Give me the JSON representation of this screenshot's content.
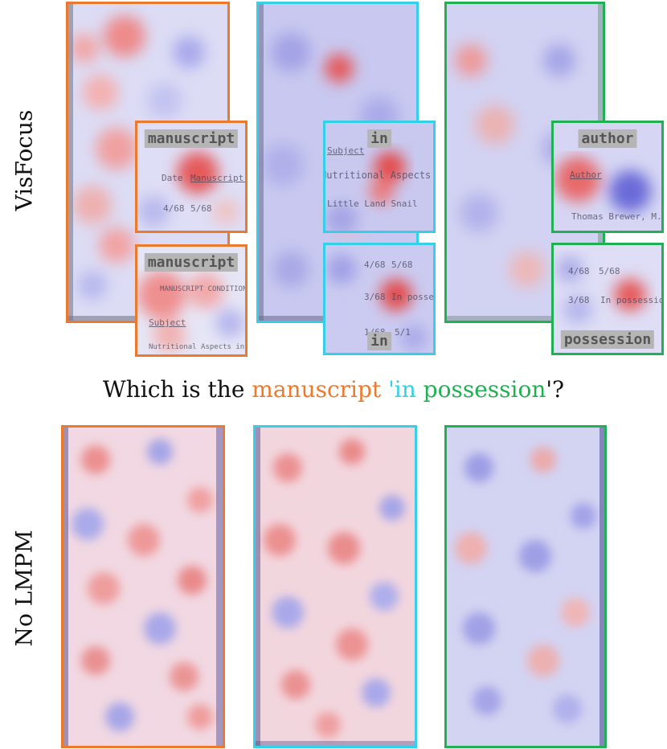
{
  "row_labels": {
    "top": "VisFocus",
    "bottom": "No LMPM"
  },
  "question": {
    "prefix": "Which is the ",
    "word_manuscript": "manuscript",
    "word_in": " 'in",
    "word_possession": " possession",
    "suffix": "'?"
  },
  "colors": {
    "orange": "#ec7a2e",
    "cyan": "#33d0e8",
    "green": "#21b054"
  },
  "insets": {
    "orange_top": {
      "tag": "manuscript",
      "words": [
        "Date",
        "Manuscript Due",
        "4/68",
        "5/68"
      ]
    },
    "orange_bottom": {
      "tag": "manuscript",
      "words": [
        "MANUSCRIPT CONDITIONS",
        "Subject",
        "Nutritional Aspects in Delmapaia"
      ]
    },
    "cyan_top": {
      "tag": "in",
      "words": [
        "Subject",
        "Nutritional Aspects in Delmapaia",
        "Little Land Snail"
      ]
    },
    "cyan_bottom": {
      "tag": "in",
      "words": [
        "4/68",
        "5/68",
        "3/68",
        "In possession",
        "1/68",
        "5/1"
      ]
    },
    "green_top": {
      "tag": "author",
      "words": [
        "Author",
        "Thomas Brewer, M.D."
      ]
    },
    "green_bottom": {
      "tag": "possession",
      "words": [
        "4/68",
        "5/68",
        "3/68",
        "In possession"
      ]
    }
  }
}
